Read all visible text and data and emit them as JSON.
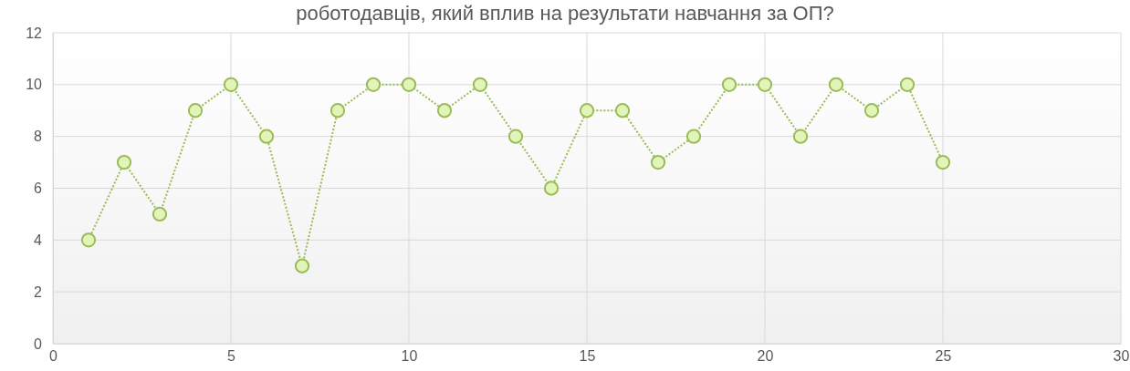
{
  "chart_data": {
    "type": "line",
    "title": "роботодавців, який вплив на результати навчання за ОП?",
    "x": [
      1,
      2,
      3,
      4,
      5,
      6,
      7,
      8,
      9,
      10,
      11,
      12,
      13,
      14,
      15,
      16,
      17,
      18,
      19,
      20,
      21,
      22,
      23,
      24,
      25
    ],
    "series": [
      {
        "color": "#9bbb59",
        "values": [
          4,
          7,
          5,
          9,
          10,
          8,
          3,
          9,
          10,
          10,
          9,
          10,
          8,
          6,
          9,
          9,
          7,
          8,
          10,
          10,
          8,
          10,
          9,
          10,
          7
        ]
      }
    ],
    "xlim": [
      0,
      30
    ],
    "xticks": [
      0,
      5,
      10,
      15,
      20,
      25,
      30
    ],
    "ylim": [
      0,
      12
    ],
    "yticks": [
      0,
      2,
      4,
      6,
      8,
      10,
      12
    ],
    "grid": true,
    "marker": "circle",
    "line_style": "dotted"
  }
}
